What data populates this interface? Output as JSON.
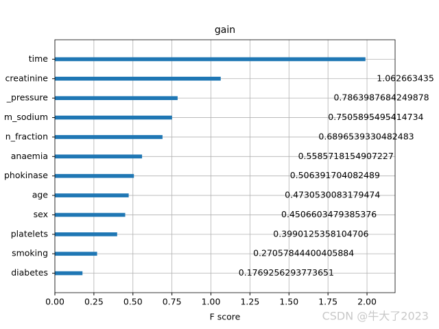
{
  "chart_data": {
    "type": "barh",
    "title": "gain",
    "xlabel": "F score",
    "categories": [
      "time",
      "creatinine",
      "_pressure",
      "m_sodium",
      "n_fraction",
      "anaemia",
      "phokinase",
      "age",
      "sex",
      "platelets",
      "smoking",
      "diabetes"
    ],
    "values": [
      1.99,
      1.062663435,
      0.7863987684249878,
      0.7505895495414734,
      0.6896539330482483,
      0.5585718154907227,
      0.506391704082489,
      0.4730530083179474,
      0.4506603479385376,
      0.3990125358104706,
      0.27057844400405884,
      0.1769256293773651
    ],
    "color": "#1f77b4",
    "xlim": [
      0,
      2.18
    ],
    "xticks": [
      {
        "value": 0,
        "label": "0.00"
      },
      {
        "value": 0.25,
        "label": "0.25"
      },
      {
        "value": 0.5,
        "label": "0.50"
      },
      {
        "value": 0.75,
        "label": "0.75"
      },
      {
        "value": 1,
        "label": "1.00"
      },
      {
        "value": 1.25,
        "label": "1.25"
      },
      {
        "value": 1.5,
        "label": "1.50"
      },
      {
        "value": 1.75,
        "label": "1.75"
      },
      {
        "value": 2,
        "label": "2.00"
      }
    ],
    "grid": true,
    "watermark": "CSDN @牛大了2023"
  }
}
